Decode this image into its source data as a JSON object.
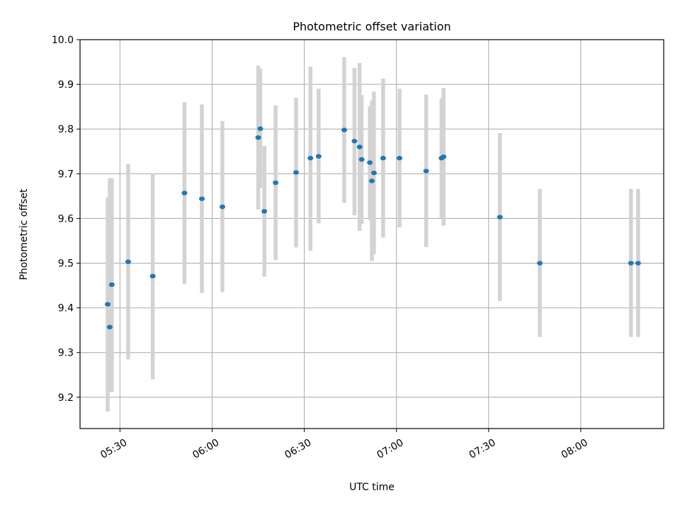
{
  "chart_data": {
    "type": "scatter",
    "title": "Photometric offset variation",
    "xlabel": "UTC time",
    "ylabel": "Photometric offset",
    "xlim": [
      "05:17",
      "08:27"
    ],
    "ylim": [
      9.13,
      10.0
    ],
    "grid": true,
    "x_ticks": [
      "05:30",
      "06:00",
      "06:30",
      "07:00",
      "07:30",
      "08:00"
    ],
    "y_ticks": [
      9.2,
      9.3,
      9.4,
      9.5,
      9.6,
      9.7,
      9.8,
      9.9,
      10.0
    ],
    "y_tick_labels": [
      "9.2",
      "9.3",
      "9.4",
      "9.5",
      "9.6",
      "9.7",
      "9.8",
      "9.9",
      "10.0"
    ],
    "colors": {
      "point": "#1f77b4",
      "errorbar": "#d3d3d3",
      "grid": "#b0b0b0"
    },
    "points": [
      {
        "time": "05:26:00",
        "value": 9.408,
        "low": 9.168,
        "high": 9.647
      },
      {
        "time": "05:26:40",
        "value": 9.357,
        "low": 9.212,
        "high": 9.69
      },
      {
        "time": "05:27:20",
        "value": 9.452,
        "low": 9.212,
        "high": 9.69
      },
      {
        "time": "05:32:40",
        "value": 9.503,
        "low": 9.285,
        "high": 9.722
      },
      {
        "time": "05:40:40",
        "value": 9.471,
        "low": 9.24,
        "high": 9.7
      },
      {
        "time": "05:51:00",
        "value": 9.657,
        "low": 9.453,
        "high": 9.86
      },
      {
        "time": "05:56:40",
        "value": 9.644,
        "low": 9.433,
        "high": 9.855
      },
      {
        "time": "06:03:20",
        "value": 9.626,
        "low": 9.435,
        "high": 9.818
      },
      {
        "time": "06:15:00",
        "value": 9.781,
        "low": 9.62,
        "high": 9.942
      },
      {
        "time": "06:15:40",
        "value": 9.801,
        "low": 9.668,
        "high": 9.935
      },
      {
        "time": "06:17:00",
        "value": 9.616,
        "low": 9.47,
        "high": 9.762
      },
      {
        "time": "06:20:40",
        "value": 9.68,
        "low": 9.507,
        "high": 9.853
      },
      {
        "time": "06:27:20",
        "value": 9.703,
        "low": 9.535,
        "high": 9.87
      },
      {
        "time": "06:32:00",
        "value": 9.735,
        "low": 9.528,
        "high": 9.94
      },
      {
        "time": "06:34:40",
        "value": 9.739,
        "low": 9.589,
        "high": 9.89
      },
      {
        "time": "06:43:00",
        "value": 9.798,
        "low": 9.635,
        "high": 9.961
      },
      {
        "time": "06:46:20",
        "value": 9.773,
        "low": 9.607,
        "high": 9.937
      },
      {
        "time": "06:48:00",
        "value": 9.76,
        "low": 9.572,
        "high": 9.948
      },
      {
        "time": "06:48:40",
        "value": 9.732,
        "low": 9.588,
        "high": 9.876
      },
      {
        "time": "06:51:20",
        "value": 9.725,
        "low": 9.596,
        "high": 9.851
      },
      {
        "time": "06:52:00",
        "value": 9.684,
        "low": 9.505,
        "high": 9.864
      },
      {
        "time": "06:52:40",
        "value": 9.702,
        "low": 9.52,
        "high": 9.884
      },
      {
        "time": "06:55:40",
        "value": 9.735,
        "low": 9.557,
        "high": 9.913
      },
      {
        "time": "07:01:00",
        "value": 9.735,
        "low": 9.58,
        "high": 9.89
      },
      {
        "time": "07:09:40",
        "value": 9.706,
        "low": 9.536,
        "high": 9.877
      },
      {
        "time": "07:14:40",
        "value": 9.735,
        "low": 9.601,
        "high": 9.869
      },
      {
        "time": "07:15:20",
        "value": 9.738,
        "low": 9.584,
        "high": 9.892
      },
      {
        "time": "07:33:40",
        "value": 9.603,
        "low": 9.415,
        "high": 9.791
      },
      {
        "time": "07:46:40",
        "value": 9.5,
        "low": 9.335,
        "high": 9.666
      },
      {
        "time": "08:16:20",
        "value": 9.5,
        "low": 9.335,
        "high": 9.666
      },
      {
        "time": "08:18:40",
        "value": 9.5,
        "low": 9.335,
        "high": 9.666
      }
    ]
  }
}
